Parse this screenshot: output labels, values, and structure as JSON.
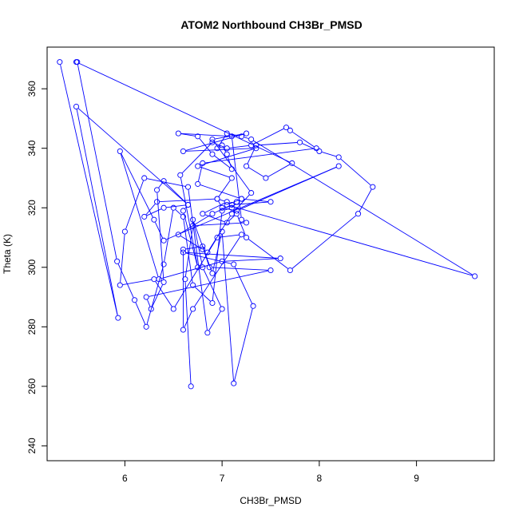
{
  "chart_data": {
    "type": "line",
    "title": "ATOM2 Northbound CH3Br_PMSD",
    "xlabel": "CH3Br_PMSD",
    "ylabel": "Theta (K)",
    "xlim": [
      5.2,
      9.8
    ],
    "ylim": [
      235,
      374
    ],
    "xticks": [
      6,
      7,
      8,
      9
    ],
    "yticks": [
      240,
      260,
      280,
      300,
      320,
      340,
      360
    ],
    "grid": false,
    "legend": "none",
    "series_color": "#0000ff",
    "marker": "open-circle",
    "series": [
      {
        "x": [
          5.33,
          5.93,
          5.5,
          6.65,
          6.6,
          6.75,
          6.57,
          6.9,
          7.05,
          7.3,
          7.66,
          7.7,
          7.97,
          6.8,
          6.75,
          7.2,
          7.5,
          7.1,
          6.9,
          6.55,
          6.8,
          6.85,
          7.1,
          7.3,
          6.9,
          7.25,
          6.6,
          7.35,
          6.75,
          7.1,
          6.95,
          7.0,
          7.15,
          8.2,
          6.4,
          6.3,
          5.95,
          6.35,
          7.0,
          7.6,
          6.6,
          7.12,
          7.32,
          7.12,
          7.0,
          6.9,
          6.7,
          6.8,
          7.0,
          6.85,
          6.65,
          6.2,
          6.0,
          5.95,
          6.3,
          6.5,
          6.95,
          7.2,
          6.7,
          6.6,
          6.6,
          6.8,
          6.87,
          7.5,
          6.22,
          6.27,
          6.4,
          6.33,
          6.4,
          6.65,
          6.4,
          6.2,
          6.33,
          6.95,
          7.05,
          6.8,
          7.05,
          7.15,
          7.25,
          7.7,
          8.4,
          8.55,
          8.2,
          8.0,
          7.8,
          7.35,
          7.25,
          7.45,
          7.72,
          5.5,
          5.51,
          5.92,
          6.1,
          6.22,
          6.4,
          6.5,
          6.6,
          6.7,
          6.9,
          7.0,
          7.1,
          7.15,
          7.2,
          7.05,
          9.6,
          7.3,
          7.2,
          7.05,
          6.95,
          7.0,
          7.05,
          7.1,
          6.9,
          6.75,
          6.55,
          7.1,
          7.2,
          7.25,
          6.7,
          6.62,
          6.68
        ],
        "y": [
          369,
          283,
          354,
          321,
          319,
          300,
          331,
          342,
          340,
          341,
          347,
          346,
          340,
          335,
          328,
          323,
          322,
          321,
          318,
          311,
          306,
          305,
          318,
          325,
          343,
          345,
          339,
          340,
          334,
          330,
          323,
          320,
          319,
          334,
          309,
          316,
          339,
          296,
          302,
          303,
          305,
          301,
          287,
          261,
          312,
          298,
          316,
          300,
          286,
          278,
          327,
          330,
          312,
          294,
          296,
          286,
          310,
          311,
          286,
          279,
          306,
          307,
          300,
          299,
          290,
          286,
          295,
          326,
          329,
          321,
          320,
          317,
          322,
          323,
          322,
          318,
          315,
          318,
          310,
          299,
          318,
          327,
          337,
          339,
          342,
          341,
          334,
          330,
          335,
          369,
          369,
          302,
          289,
          280,
          301,
          320,
          317,
          294,
          288,
          319,
          320,
          322,
          323,
          321,
          297,
          343,
          344,
          345,
          340,
          341,
          338,
          333,
          338,
          344,
          345,
          344,
          316,
          315,
          314,
          296,
          260
        ]
      }
    ]
  }
}
